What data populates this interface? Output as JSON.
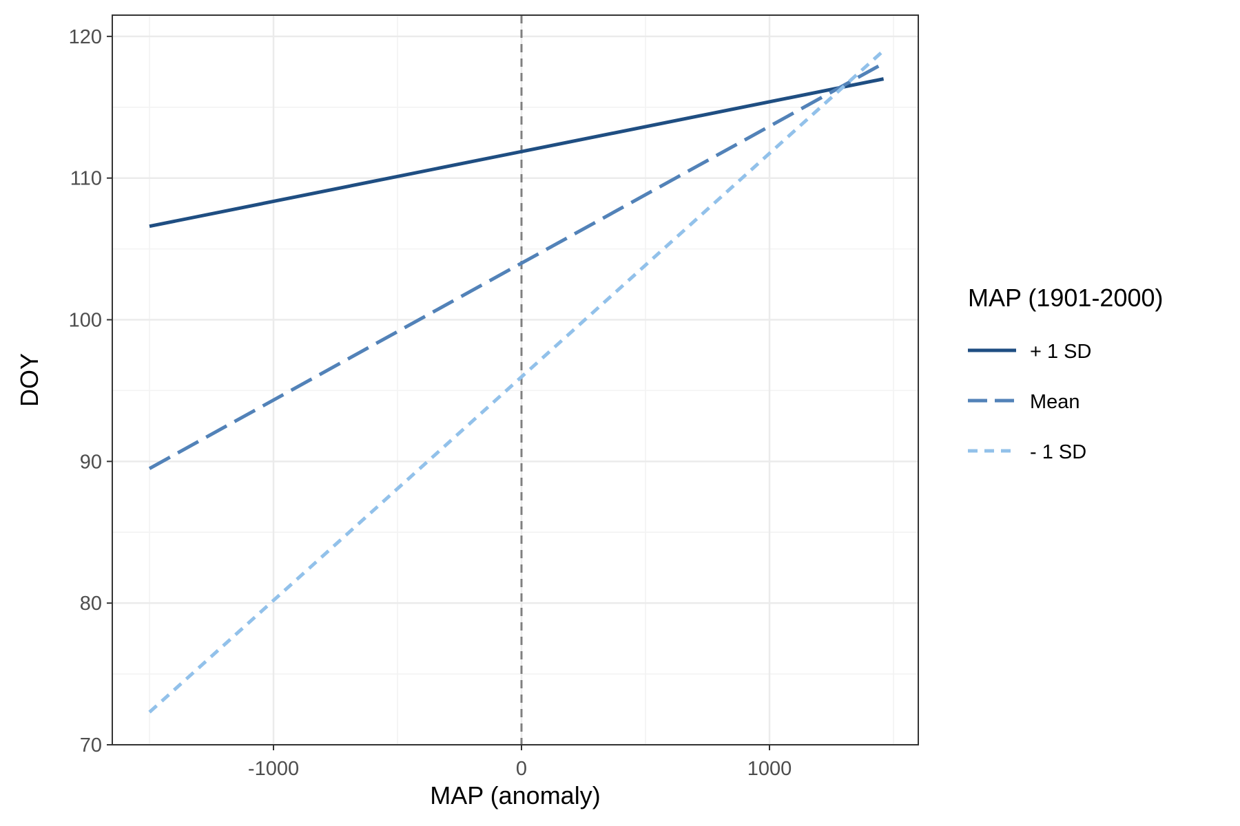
{
  "chart_data": {
    "type": "line",
    "xlabel": "MAP (anomaly)",
    "ylabel": "DOY",
    "xlim": [
      -1650,
      1600
    ],
    "ylim": [
      70,
      121.5
    ],
    "x_ticks": [
      -1000,
      0,
      1000
    ],
    "x_tick_labels": [
      "-1000",
      "0",
      "1000"
    ],
    "y_ticks": [
      70,
      80,
      90,
      100,
      110,
      120
    ],
    "y_tick_labels": [
      "70",
      "80",
      "90",
      "100",
      "110",
      "120"
    ],
    "grid": true,
    "reference_line": {
      "x": 0,
      "style": "dashed",
      "color": "#7f7f7f"
    },
    "legend": {
      "title": "MAP (1901-2000)",
      "position": "right"
    },
    "series": [
      {
        "name": "+ 1 SD",
        "color": "#1f4e82",
        "style": "solid",
        "x": [
          -1500,
          1460
        ],
        "y": [
          106.6,
          117.0
        ]
      },
      {
        "name": "Mean",
        "color": "#5282b8",
        "style": "dashed",
        "x": [
          -1500,
          1460
        ],
        "y": [
          89.5,
          118.1
        ]
      },
      {
        "name": "- 1 SD",
        "color": "#92c1ea",
        "style": "dotted",
        "x": [
          -1500,
          1460
        ],
        "y": [
          72.3,
          119.0
        ]
      }
    ]
  }
}
